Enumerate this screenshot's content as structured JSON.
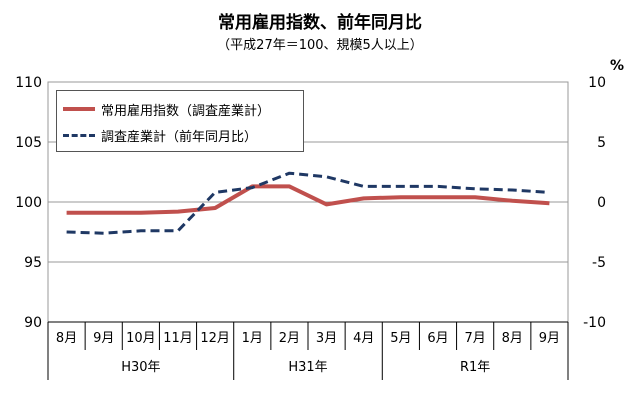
{
  "title": "常用雇用指数、前年同月比",
  "subtitle": "（平成27年＝100、規模5人以上）",
  "colors": {
    "index": "#c0504d",
    "yoy": "#1f3864",
    "grid": "#999999",
    "axis": "#000000"
  },
  "chart_data": {
    "type": "line",
    "title": "常用雇用指数、前年同月比",
    "subtitle": "（平成27年＝100、規模5人以上）",
    "categories": [
      "8月",
      "9月",
      "10月",
      "11月",
      "12月",
      "1月",
      "2月",
      "3月",
      "4月",
      "5月",
      "6月",
      "7月",
      "8月",
      "9月"
    ],
    "year_groups": [
      {
        "label": "H30年",
        "start": 0,
        "end": 4
      },
      {
        "label": "H31年",
        "start": 5,
        "end": 8
      },
      {
        "label": "R1年",
        "start": 9,
        "end": 13
      }
    ],
    "left_axis": {
      "range": [
        90,
        110
      ],
      "ticks": [
        90,
        95,
        100,
        105,
        110
      ]
    },
    "right_axis": {
      "unit": "%",
      "range": [
        -10,
        10
      ],
      "ticks": [
        -10,
        -5,
        0,
        5,
        10
      ]
    },
    "grid": true,
    "legend_position": "top-left",
    "series": [
      {
        "name": "常用雇用指数（調査産業計）",
        "axis": "left",
        "style": "solid",
        "values": [
          99.1,
          99.1,
          99.1,
          99.2,
          99.5,
          101.3,
          101.3,
          99.8,
          100.3,
          100.4,
          100.4,
          100.4,
          100.1,
          99.9
        ]
      },
      {
        "name": "調査産業計（前年同月比）",
        "axis": "right",
        "style": "dashed",
        "values": [
          -2.5,
          -2.6,
          -2.4,
          -2.4,
          0.8,
          1.2,
          2.4,
          2.1,
          1.3,
          1.3,
          1.3,
          1.1,
          1.0,
          0.8
        ]
      }
    ]
  }
}
